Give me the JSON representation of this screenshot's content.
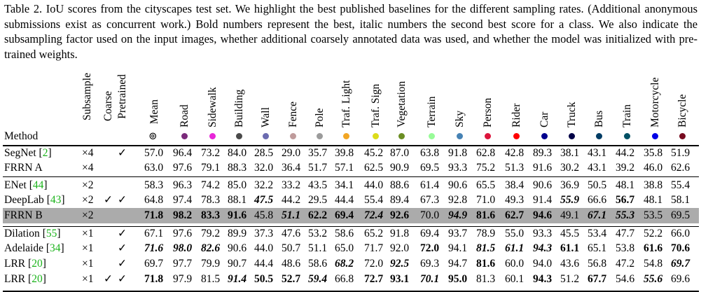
{
  "caption": "Table 2. IoU scores from the cityscapes test set. We highlight the best published baselines for the different sampling rates. (Additional anonymous submissions exist as concurrent work.) Bold numbers represent the best, italic numbers the second best score for a class. We also indicate the subsampling factor used on the input images, whether additional coarsely annotated data was used, and whether the model was initialized with pre-trained weights.",
  "headers": {
    "method": "Method",
    "subsample": "Subsample",
    "coarse": "Coarse",
    "pretrained": "Pretrained",
    "mean": "Mean",
    "classes": [
      "Road",
      "Sidewalk",
      "Building",
      "Wall",
      "Fence",
      "Pole",
      "Traf. Light",
      "Traf. Sign",
      "Vegetation",
      "Terrain",
      "Sky",
      "Person",
      "Rider",
      "Car",
      "Truck",
      "Bus",
      "Train",
      "Motorcycle",
      "Bicycle"
    ],
    "class_colors": [
      "#7a2a7a",
      "#e826d8",
      "#4a4a4a",
      "#6b6bb0",
      "#bf9b9b",
      "#9b9b9b",
      "#f2a624",
      "#dcdc1a",
      "#6b8e23",
      "#98fb98",
      "#4682b4",
      "#dc143c",
      "#ff0000",
      "#00008e",
      "#000046",
      "#003c64",
      "#005064",
      "#0000e6",
      "#770b20"
    ]
  },
  "rows": [
    {
      "method": "SegNet",
      "cite": "2",
      "sub": "×4",
      "coarse": "",
      "pre": "✓",
      "mean": "57.0",
      "vals": [
        "96.4",
        "73.2",
        "84.0",
        "28.5",
        "29.0",
        "35.7",
        "39.8",
        "45.2",
        "87.0",
        "63.8",
        "91.8",
        "62.8",
        "42.8",
        "89.3",
        "38.1",
        "43.1",
        "44.2",
        "35.8",
        "51.9"
      ],
      "fmt_mean": "",
      "fmt": []
    },
    {
      "method": "FRRN A",
      "cite": "",
      "sub": "×4",
      "coarse": "",
      "pre": "",
      "mean": "63.0",
      "vals": [
        "97.6",
        "79.1",
        "88.3",
        "32.0",
        "36.4",
        "51.7",
        "57.1",
        "62.5",
        "90.9",
        "69.5",
        "93.3",
        "75.2",
        "51.3",
        "91.6",
        "30.2",
        "43.1",
        "39.2",
        "46.0",
        "62.6"
      ],
      "fmt_mean": "",
      "fmt": []
    },
    {
      "method": "ENet",
      "cite": "44",
      "sub": "×2",
      "coarse": "",
      "pre": "",
      "mean": "58.3",
      "vals": [
        "96.3",
        "74.2",
        "85.0",
        "32.2",
        "33.2",
        "43.5",
        "34.1",
        "44.0",
        "88.6",
        "61.4",
        "90.6",
        "65.5",
        "38.4",
        "90.6",
        "36.9",
        "50.5",
        "48.1",
        "38.8",
        "55.4"
      ],
      "fmt_mean": "",
      "fmt": []
    },
    {
      "method": "DeepLab",
      "cite": "43",
      "sub": "×2",
      "coarse": "✓",
      "pre": "✓",
      "mean": "64.8",
      "vals": [
        "97.4",
        "78.3",
        "88.1",
        "47.5",
        "44.2",
        "29.5",
        "44.4",
        "55.4",
        "89.4",
        "67.3",
        "92.8",
        "71.0",
        "49.3",
        "91.4",
        "55.9",
        "66.6",
        "56.7",
        "48.1",
        "58.1"
      ],
      "fmt_mean": "",
      "fmt": [
        "",
        "",
        "",
        "bi",
        "",
        "",
        "",
        "",
        "",
        "",
        "",
        "",
        "",
        "",
        "bi",
        "",
        "b",
        "",
        ""
      ]
    },
    {
      "method": "FRRN B",
      "cite": "",
      "sub": "×2",
      "coarse": "",
      "pre": "",
      "mean": "71.8",
      "vals": [
        "98.2",
        "83.3",
        "91.6",
        "45.8",
        "51.1",
        "62.2",
        "69.4",
        "72.4",
        "92.6",
        "70.0",
        "94.9",
        "81.6",
        "62.7",
        "94.6",
        "49.1",
        "67.1",
        "55.3",
        "53.5",
        "69.5"
      ],
      "fmt_mean": "b",
      "fmt": [
        "b",
        "b",
        "b",
        "",
        "bi",
        "b",
        "b",
        "bi",
        "b",
        "",
        "bi",
        "b",
        "b",
        "b",
        "",
        "bi",
        "bi",
        "",
        ""
      ],
      "highlight": true
    },
    {
      "method": "Dilation",
      "cite": "55",
      "sub": "×1",
      "coarse": "",
      "pre": "✓",
      "mean": "67.1",
      "vals": [
        "97.6",
        "79.2",
        "89.9",
        "37.3",
        "47.6",
        "53.2",
        "58.6",
        "65.2",
        "91.8",
        "69.4",
        "93.7",
        "78.9",
        "55.0",
        "93.3",
        "45.5",
        "53.4",
        "47.7",
        "52.2",
        "66.0"
      ],
      "fmt_mean": "",
      "fmt": []
    },
    {
      "method": "Adelaide",
      "cite": "34",
      "sub": "×1",
      "coarse": "",
      "pre": "✓",
      "mean": "71.6",
      "vals": [
        "98.0",
        "82.6",
        "90.6",
        "44.0",
        "50.7",
        "51.1",
        "65.0",
        "71.7",
        "92.0",
        "72.0",
        "94.1",
        "81.5",
        "61.1",
        "94.3",
        "61.1",
        "65.1",
        "53.8",
        "61.6",
        "70.6"
      ],
      "fmt_mean": "bi",
      "fmt": [
        "bi",
        "bi",
        "",
        "",
        "",
        "",
        "",
        "",
        "",
        "b",
        "",
        "bi",
        "bi",
        "bi",
        "b",
        "",
        "",
        "b",
        "b"
      ]
    },
    {
      "method": "LRR",
      "cite": "20",
      "sub": "×1",
      "coarse": "",
      "pre": "✓",
      "mean": "69.7",
      "vals": [
        "97.7",
        "79.9",
        "90.7",
        "44.4",
        "48.6",
        "58.6",
        "68.2",
        "72.0",
        "92.5",
        "69.3",
        "94.7",
        "81.6",
        "60.0",
        "94.0",
        "43.6",
        "56.8",
        "47.2",
        "54.8",
        "69.7"
      ],
      "fmt_mean": "",
      "fmt": [
        "",
        "",
        "",
        "",
        "",
        "",
        "bi",
        "",
        "bi",
        "",
        "",
        "b",
        "",
        "",
        "",
        "",
        "",
        "",
        "bi"
      ]
    },
    {
      "method": "LRR",
      "cite": "20",
      "sub": "×1",
      "coarse": "✓",
      "pre": "✓",
      "mean": "71.8",
      "vals": [
        "97.9",
        "81.5",
        "91.4",
        "50.5",
        "52.7",
        "59.4",
        "66.8",
        "72.7",
        "93.1",
        "70.1",
        "95.0",
        "81.3",
        "60.1",
        "94.3",
        "51.2",
        "67.7",
        "54.6",
        "55.6",
        "69.6"
      ],
      "fmt_mean": "b",
      "fmt": [
        "",
        "",
        "bi",
        "b",
        "b",
        "bi",
        "",
        "b",
        "b",
        "bi",
        "b",
        "",
        "",
        "b",
        "",
        "b",
        "",
        "bi",
        ""
      ]
    }
  ]
}
